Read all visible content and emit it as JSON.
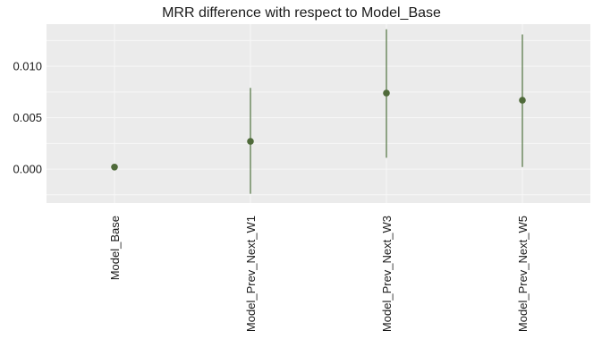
{
  "chart_data": {
    "type": "scatter",
    "title": "MRR difference with respect to Model_Base",
    "xlabel": "",
    "ylabel": "",
    "categories": [
      "Model_Base",
      "Model_Prev_Next_W1",
      "Model_Prev_Next_W3",
      "Model_Prev_Next_W5"
    ],
    "values": [
      0.0002,
      0.0027,
      0.0074,
      0.0067
    ],
    "lower": [
      0.0002,
      -0.0024,
      0.0011,
      0.0002
    ],
    "upper": [
      0.0002,
      0.0079,
      0.0136,
      0.0131
    ],
    "ylim": [
      -0.0033,
      0.0141
    ],
    "yticks": [
      0.0,
      0.005,
      0.01
    ],
    "ytick_labels": [
      "0.000",
      "0.005",
      "0.010"
    ],
    "grid": true,
    "colors": {
      "panel": "#ebebeb",
      "grid": "#f7f7f7",
      "point": "#4f6a3a",
      "errorbar": "#51733f"
    }
  }
}
